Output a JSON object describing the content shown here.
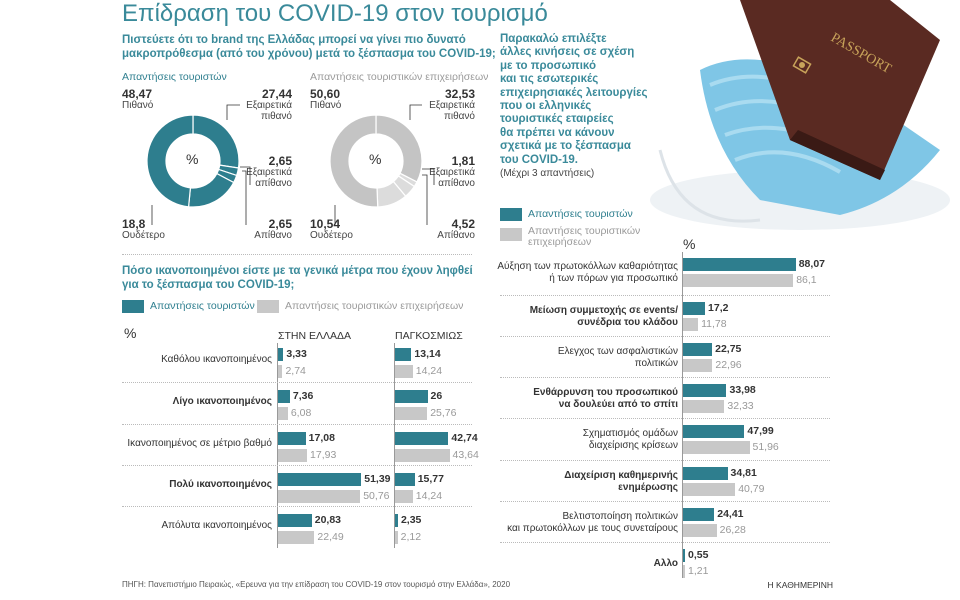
{
  "title": "Επίδραση του COVID-19 στον τουρισμό",
  "q1": {
    "text_line1": "Πιστεύετε ότι το brand της Ελλάδας μπορεί να γίνει πιο δυνατό",
    "text_line2": "μακροπρόθεσμα (από του χρόνου) μετά το ξέσπασμα του COVID-19;",
    "left_heading": "Απαντήσεις τουριστών",
    "right_heading": "Απαντήσεις τουριστικών επιχειρήσεων",
    "center_label": "%"
  },
  "q2": {
    "text_line1": "Πόσο ικανοποιημένοι είστε με τα γενικά μέτρα που έχουν ληφθεί",
    "text_line2": "για το ξέσπασμα του COVID-19;",
    "legend_tourists": "Απαντήσεις τουριστών",
    "legend_business": "Απαντήσεις τουριστικών επιχειρήσεων",
    "pct": "%",
    "col_greece": "ΣΤΗΝ ΕΛΛΑΔΑ",
    "col_global": "ΠΑΓΚΟΣΜΙΩΣ"
  },
  "q3": {
    "line1": "Παρακαλώ επιλέξτε",
    "line2": "άλλες κινήσεις σε σχέση",
    "line3": "με το προσωπικό",
    "line4": "και τις εσωτερικές",
    "line5": "επιχειρησιακές λειτουργίες",
    "line6": "που οι ελληνικές",
    "line7": "τουριστικές εταιρείες",
    "line8": "θα πρέπει να κάνουν",
    "line9": "σχετικά με το ξέσπασμα",
    "line10": "του COVID-19.",
    "note": "(Μέχρι 3 απαντήσεις)",
    "legend_tourists": "Απαντήσεις τουριστών",
    "legend_business_1": "Απαντήσεις τουριστικών",
    "legend_business_2": "επιχειρήσεων",
    "pct": "%"
  },
  "passport_text": "PASSPORT",
  "source": "ΠΗΓΗ: Πανεπιστήμιο Πειραιώς, «Ερευνα για την επίδραση του COVID-19 στον τουρισμό στην Ελλάδα», 2020",
  "publisher": "Η ΚΑΘΗΜΕΡΙΝΗ",
  "colors": {
    "teal": "#2e7e8e",
    "grey": "#c8c8c8",
    "title": "#3a8a9a"
  },
  "chart_data": [
    {
      "type": "pie",
      "title": "Απαντήσεις τουριστών",
      "slices": [
        {
          "label": "Πιθανό",
          "value": 48.47,
          "value_text": "48,47"
        },
        {
          "label": "Εξαιρετικά πιθανό",
          "value": 27.44,
          "value_text": "27,44",
          "label_line1": "Εξαιρετικά",
          "label_line2": "πιθανό"
        },
        {
          "label": "Εξαιρετικά απίθανο",
          "value": 2.65,
          "value_text": "2,65",
          "label_line1": "Εξαιρετικά",
          "label_line2": "απίθανο"
        },
        {
          "label": "Απίθανο",
          "value": 2.65,
          "value_text": "2,65"
        },
        {
          "label": "Ουδέτερο",
          "value": 18.8,
          "value_text": "18,8"
        }
      ]
    },
    {
      "type": "pie",
      "title": "Απαντήσεις τουριστικών επιχειρήσεων",
      "slices": [
        {
          "label": "Πιθανό",
          "value": 50.6,
          "value_text": "50,60"
        },
        {
          "label": "Εξαιρετικά πιθανό",
          "value": 32.53,
          "value_text": "32,53",
          "label_line1": "Εξαιρετικά",
          "label_line2": "πιθανό"
        },
        {
          "label": "Εξαιρετικά απίθανο",
          "value": 1.81,
          "value_text": "1,81",
          "label_line1": "Εξαιρετικά",
          "label_line2": "απίθανο"
        },
        {
          "label": "Απίθανο",
          "value": 4.52,
          "value_text": "4,52"
        },
        {
          "label": "Ουδέτερο",
          "value": 10.54,
          "value_text": "10,54"
        }
      ]
    },
    {
      "type": "bar",
      "title": "Πόσο ικανοποιημένοι είστε με τα γενικά μέτρα που έχουν ληφθεί για το ξέσπασμα του COVID-19;",
      "categories": [
        "Καθόλου ικανοποιημένος",
        "Λίγο ικανοποιημένος",
        "Ικανοποιημένος σε μέτριο βαθμό",
        "Πολύ ικανοποιημένος",
        "Απόλυτα ικανοποιημένος"
      ],
      "bold": [
        false,
        true,
        false,
        true,
        false
      ],
      "panels": [
        {
          "name": "ΣΤΗΝ ΕΛΛΑΔΑ",
          "series": [
            {
              "name": "Απαντήσεις τουριστών",
              "values": [
                3.33,
                7.36,
                17.08,
                51.39,
                20.83
              ],
              "labels": [
                "3,33",
                "7,36",
                "17,08",
                "51,39",
                "20,83"
              ]
            },
            {
              "name": "Απαντήσεις τουριστικών επιχειρήσεων",
              "values": [
                2.74,
                6.08,
                17.93,
                50.76,
                22.49
              ],
              "labels": [
                "2,74",
                "6,08",
                "17,93",
                "50,76",
                "22,49"
              ]
            }
          ]
        },
        {
          "name": "ΠΑΓΚΟΣΜΙΩΣ",
          "series": [
            {
              "name": "Απαντήσεις τουριστών",
              "values": [
                13.14,
                26,
                42.74,
                15.77,
                2.35
              ],
              "labels": [
                "13,14",
                "26",
                "42,74",
                "15,77",
                "2,35"
              ]
            },
            {
              "name": "Απαντήσεις τουριστικών επιχειρήσεων",
              "values": [
                14.24,
                25.76,
                43.64,
                14.24,
                2.12
              ],
              "labels": [
                "14,24",
                "25,76",
                "43,64",
                "14,24",
                "2,12"
              ]
            }
          ]
        }
      ]
    },
    {
      "type": "bar",
      "title": "Παρακαλώ επιλέξτε άλλες κινήσεις σε σχέση με το προσωπικό και τις εσωτερικές επιχειρησιακές λειτουργίες",
      "categories": [
        [
          "Αύξηση των πρωτοκόλλων καθαριότητας",
          "ή των πόρων για προσωπικό"
        ],
        [
          "Μείωση συμμετοχής σε events/",
          "συνέδρια του κλάδου"
        ],
        [
          "Ελεγχος των ασφαλιστικών",
          "πολιτικών"
        ],
        [
          "Ενθάρρυνση του προσωπικού",
          "να δουλεύει από το σπίτι"
        ],
        [
          "Σχηματισμός ομάδων",
          "διαχείρισης κρίσεων"
        ],
        [
          "Διαχείριση καθημερινής",
          "ενημέρωσης"
        ],
        [
          "Βελτιστοποίηση πολιτικών",
          "και πρωτοκόλλων με τους συνεταίρους"
        ],
        [
          "Αλλο"
        ]
      ],
      "bold": [
        false,
        true,
        false,
        true,
        false,
        true,
        false,
        true
      ],
      "series": [
        {
          "name": "Απαντήσεις τουριστών",
          "values": [
            88.07,
            17.2,
            22.75,
            33.98,
            47.99,
            34.81,
            24.41,
            0.55
          ],
          "labels": [
            "88,07",
            "17,2",
            "22,75",
            "33,98",
            "47,99",
            "34,81",
            "24,41",
            "0,55"
          ]
        },
        {
          "name": "Απαντήσεις τουριστικών επιχειρήσεων",
          "values": [
            86.1,
            11.78,
            22.96,
            32.33,
            51.96,
            40.79,
            26.28,
            1.21
          ],
          "labels": [
            "86,1",
            "11,78",
            "22,96",
            "32,33",
            "51,96",
            "40,79",
            "26,28",
            "1,21"
          ]
        }
      ]
    }
  ]
}
